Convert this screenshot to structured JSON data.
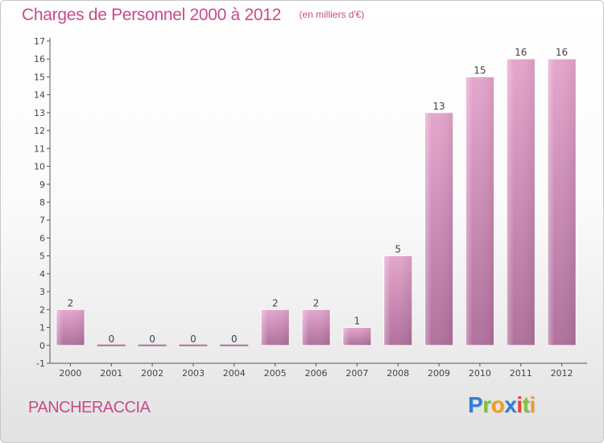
{
  "title": "Charges de Personnel 2000 à 2012",
  "subtitle": "(en milliers d'€)",
  "commune": "PANCHERACCIA",
  "logo": {
    "letters": [
      "P",
      "r",
      "o",
      "x",
      "i",
      "t",
      "i"
    ]
  },
  "colors": {
    "bar_top": "#e6a6cd",
    "bar_bottom": "#b0719d",
    "title": "#c94a88",
    "axis": "#555555"
  },
  "chart_data": {
    "type": "bar",
    "categories": [
      "2000",
      "2001",
      "2002",
      "2003",
      "2004",
      "2005",
      "2006",
      "2007",
      "2008",
      "2009",
      "2010",
      "2011",
      "2012"
    ],
    "values": [
      2,
      0,
      0,
      0,
      0,
      2,
      2,
      1,
      5,
      13,
      15,
      16,
      16
    ],
    "data_labels": [
      "2",
      "0",
      "0",
      "0",
      "0",
      "2",
      "2",
      "1",
      "5",
      "13",
      "15",
      "16",
      "16"
    ],
    "yticks": [
      "-1",
      "0",
      "1",
      "2",
      "3",
      "4",
      "5",
      "6",
      "7",
      "8",
      "9",
      "10",
      "11",
      "12",
      "13",
      "14",
      "15",
      "16",
      "17"
    ],
    "ylim": [
      -1,
      17
    ],
    "grid": false,
    "legend": "none"
  }
}
